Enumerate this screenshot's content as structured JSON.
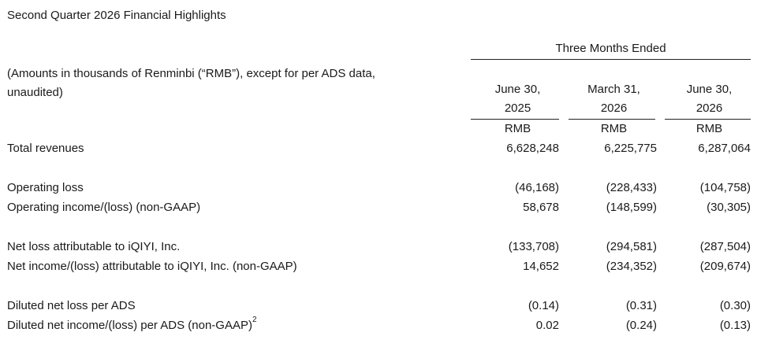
{
  "title": "Second Quarter 2026 Financial Highlights",
  "period_header": "Three Months Ended",
  "note_line1": "(Amounts in thousands of Renminbi (“RMB”), except for per ADS data,",
  "note_line2": "unaudited)",
  "columns": [
    {
      "line1": "June 30,",
      "line2": "2025",
      "currency": "RMB"
    },
    {
      "line1": "March 31,",
      "line2": "2026",
      "currency": "RMB"
    },
    {
      "line1": "June 30,",
      "line2": "2026",
      "currency": "RMB"
    }
  ],
  "rows": [
    {
      "label": "Total revenues",
      "values": [
        "6,628,248",
        "6,225,775",
        "6,287,064"
      ]
    },
    {
      "label": "Operating loss",
      "values": [
        "(46,168)",
        "(228,433)",
        "(104,758)"
      ]
    },
    {
      "label": "Operating income/(loss) (non-GAAP)",
      "values": [
        "58,678",
        "(148,599)",
        "(30,305)"
      ]
    },
    {
      "label": "Net loss attributable to iQIYI, Inc.",
      "values": [
        "(133,708)",
        "(294,581)",
        "(287,504)"
      ]
    },
    {
      "label": "Net income/(loss) attributable to iQIYI, Inc. (non-GAAP)",
      "values": [
        "14,652",
        "(234,352)",
        "(209,674)"
      ]
    },
    {
      "label": "Diluted net loss per ADS",
      "values": [
        "(0.14)",
        "(0.31)",
        "(0.30)"
      ]
    },
    {
      "label": "Diluted net income/(loss) per ADS (non-GAAP)",
      "sup": "2",
      "values": [
        "0.02",
        "(0.24)",
        "(0.13)"
      ]
    }
  ]
}
